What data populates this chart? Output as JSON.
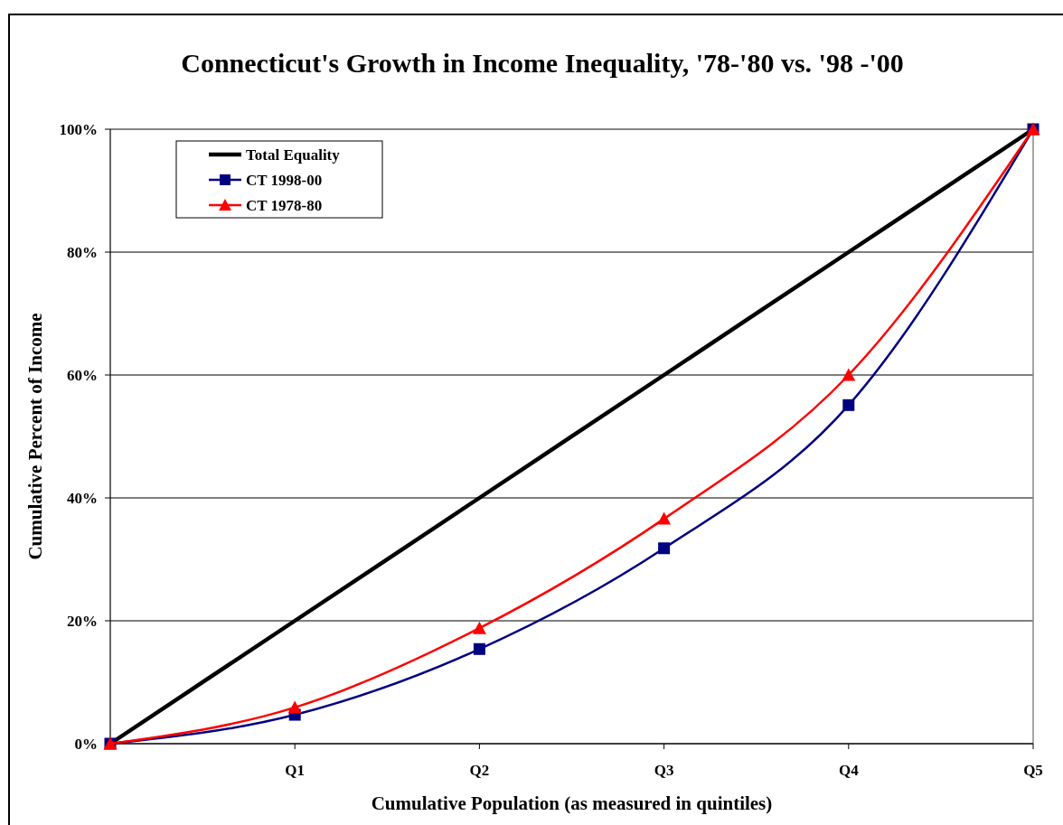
{
  "chart_data": {
    "type": "line",
    "title": "Connecticut's Growth in Income Inequality, '78-'80 vs. '98 -'00",
    "xlabel": "Cumulative Population (as measured in quintiles)",
    "ylabel": "Cumulative Percent of Income",
    "categories": [
      null,
      "Q1",
      "Q2",
      "Q3",
      "Q4",
      "Q5"
    ],
    "series": [
      {
        "name": "Total Equality",
        "color": "#000000",
        "marker": "none",
        "values": [
          0,
          20,
          40,
          60,
          80,
          100
        ]
      },
      {
        "name": "CT 1998-00",
        "color": "#000080",
        "marker": "square",
        "values": [
          0,
          4.7,
          15.4,
          31.8,
          55.1,
          100
        ]
      },
      {
        "name": "CT 1978-80",
        "color": "#ff0000",
        "marker": "triangle",
        "values": [
          0,
          5.9,
          18.8,
          36.6,
          60.0,
          100
        ]
      }
    ],
    "ylim": [
      0,
      100
    ],
    "yticks": [
      {
        "value": 0,
        "label": "0%"
      },
      {
        "value": 20,
        "label": "20%"
      },
      {
        "value": 40,
        "label": "40%"
      },
      {
        "value": 60,
        "label": "60%"
      },
      {
        "value": 80,
        "label": "80%"
      },
      {
        "value": 100,
        "label": "100%"
      }
    ],
    "grid": "y",
    "legend": "top left"
  }
}
